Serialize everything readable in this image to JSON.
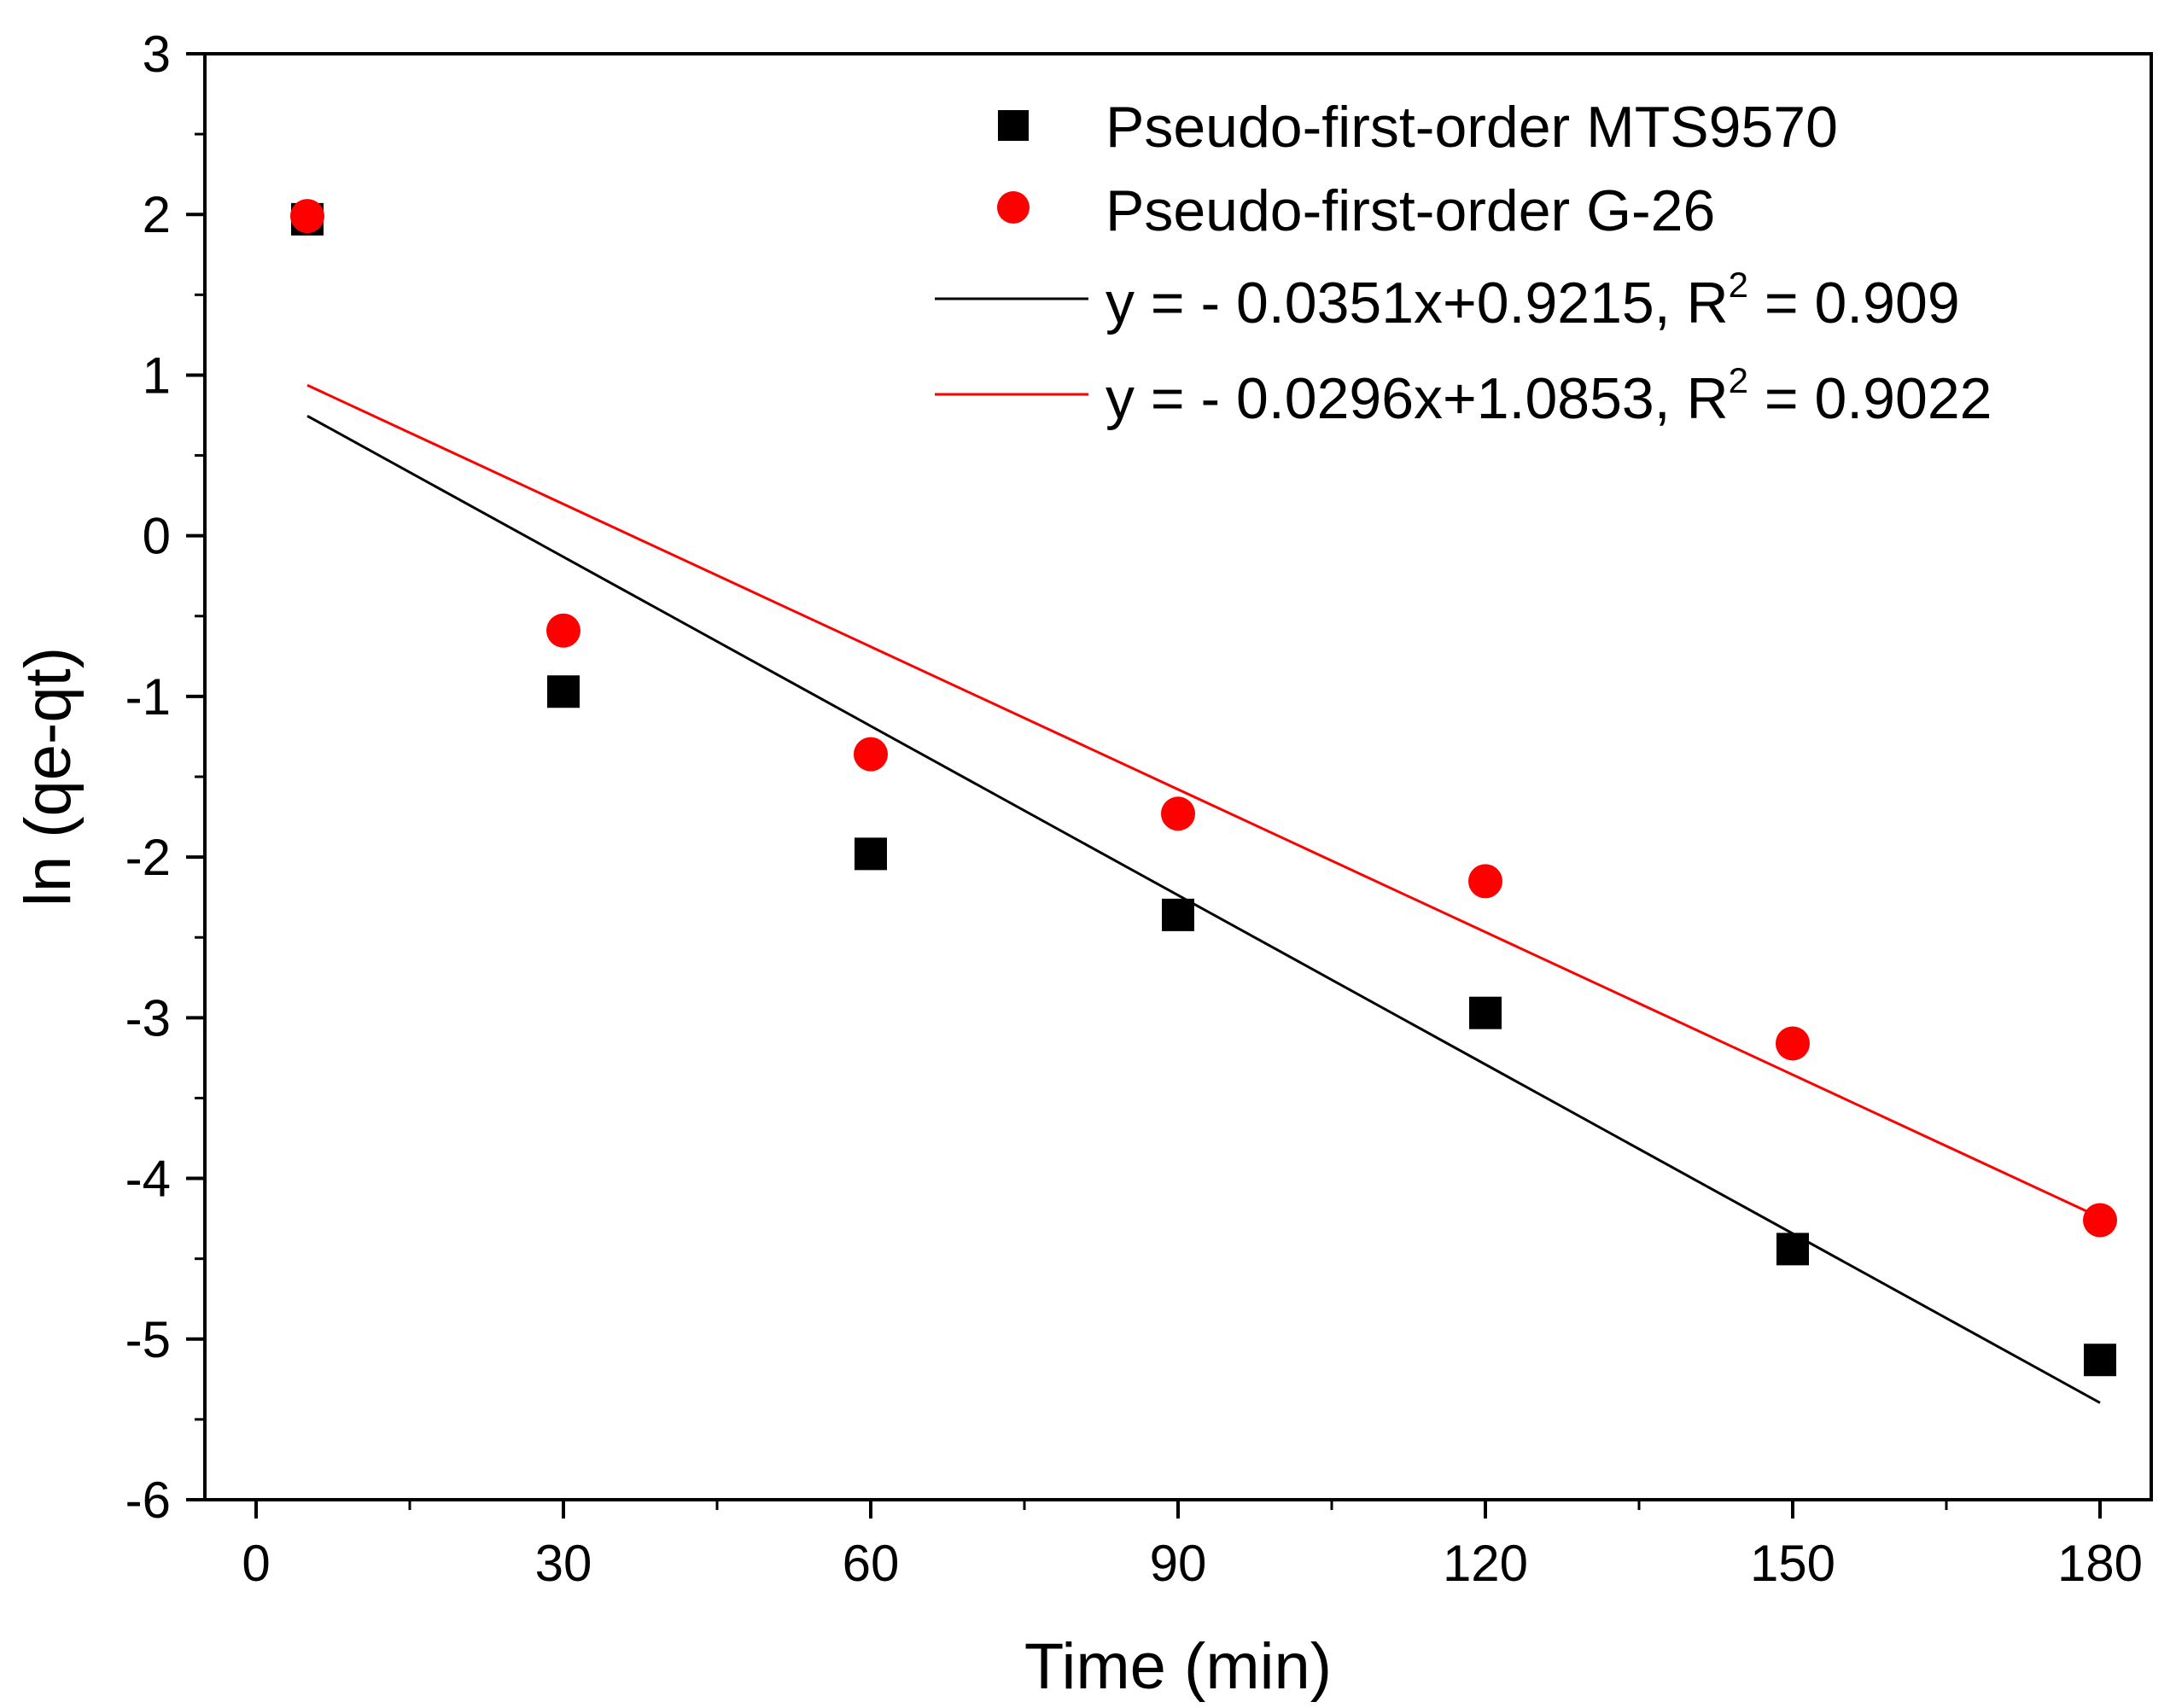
{
  "chart_data": {
    "type": "scatter",
    "title": "",
    "xlabel": "Time (min)",
    "ylabel": "ln (qe-qt)",
    "xlim": [
      -5,
      185
    ],
    "ylim": [
      -6,
      3
    ],
    "xticks": [
      0,
      30,
      60,
      90,
      120,
      150,
      180
    ],
    "yticks": [
      -6,
      -5,
      -4,
      -3,
      -2,
      -1,
      0,
      1,
      2,
      3
    ],
    "xtick_labels": [
      "0",
      "30",
      "60",
      "90",
      "120",
      "150",
      "180"
    ],
    "ytick_labels": [
      "-6",
      "-5",
      "-4",
      "-3",
      "-2",
      "-1",
      "0",
      "1",
      "2",
      "3"
    ],
    "grid": false,
    "legend_position": "top-right",
    "series": [
      {
        "name": "Pseudo-first-order MTS9570",
        "marker": "square",
        "color": "#000000",
        "x": [
          5,
          30,
          60,
          90,
          120,
          150,
          180
        ],
        "y": [
          1.97,
          -0.97,
          -1.98,
          -2.36,
          -2.97,
          -4.44,
          -5.13
        ]
      },
      {
        "name": "Pseudo-first-order G-26",
        "marker": "circle",
        "color": "#ff0000",
        "x": [
          5,
          30,
          60,
          90,
          120,
          150,
          180
        ],
        "y": [
          1.99,
          -0.59,
          -1.36,
          -1.73,
          -2.15,
          -3.16,
          -4.26
        ]
      }
    ],
    "fits": [
      {
        "name": "MTS9570 fit",
        "color": "#000000",
        "slope": -0.0351,
        "intercept": 0.9215,
        "x_range": [
          5,
          180
        ],
        "label_prefix": "y =   - 0.0351x+0.9215, R",
        "label_sup": "2",
        "label_suffix": " = 0.909"
      },
      {
        "name": "G-26 fit",
        "color": "#ff0000",
        "slope": -0.0296,
        "intercept": 1.0853,
        "x_range": [
          5,
          180
        ],
        "label_prefix": "y =   - 0.0296x+1.0853, R",
        "label_sup": "2",
        "label_suffix": " = 0.9022"
      }
    ]
  }
}
